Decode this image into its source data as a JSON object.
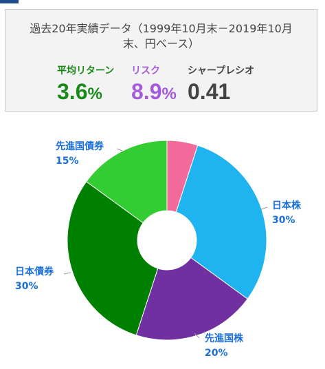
{
  "header": {
    "period_text_line1": "過去20年実績データ（1999年10月末－2019年10月",
    "period_text_line2": "末、円ベース）"
  },
  "metrics": {
    "return": {
      "label": "平均リターン",
      "value": "3.6",
      "unit": "%",
      "color": "#1a8a1a"
    },
    "risk": {
      "label": "リスク",
      "value": "8.9",
      "unit": "%",
      "color": "#a45bd9"
    },
    "sharpe": {
      "label": "シャープレシオ",
      "value": "0.41",
      "color": "#444444"
    }
  },
  "chart_data": {
    "type": "pie",
    "donut": true,
    "start_angle_deg": 0,
    "slices": [
      {
        "name": "other",
        "label": "",
        "percent_label": "",
        "value": 5,
        "color": "#f26b9b"
      },
      {
        "name": "domestic-stocks",
        "label": "日本株",
        "percent_label": "30%",
        "value": 30,
        "color": "#1fb3f0"
      },
      {
        "name": "foreign-stocks",
        "label": "先進国株",
        "percent_label": "20%",
        "value": 20,
        "color": "#7030a0"
      },
      {
        "name": "domestic-bonds",
        "label": "日本債券",
        "percent_label": "30%",
        "value": 30,
        "color": "#008000"
      },
      {
        "name": "foreign-bonds",
        "label": "先進国債券",
        "percent_label": "15%",
        "value": 15,
        "color": "#33cc33"
      }
    ],
    "label_color": "#1a6fd6",
    "leader_color": "#999999"
  }
}
